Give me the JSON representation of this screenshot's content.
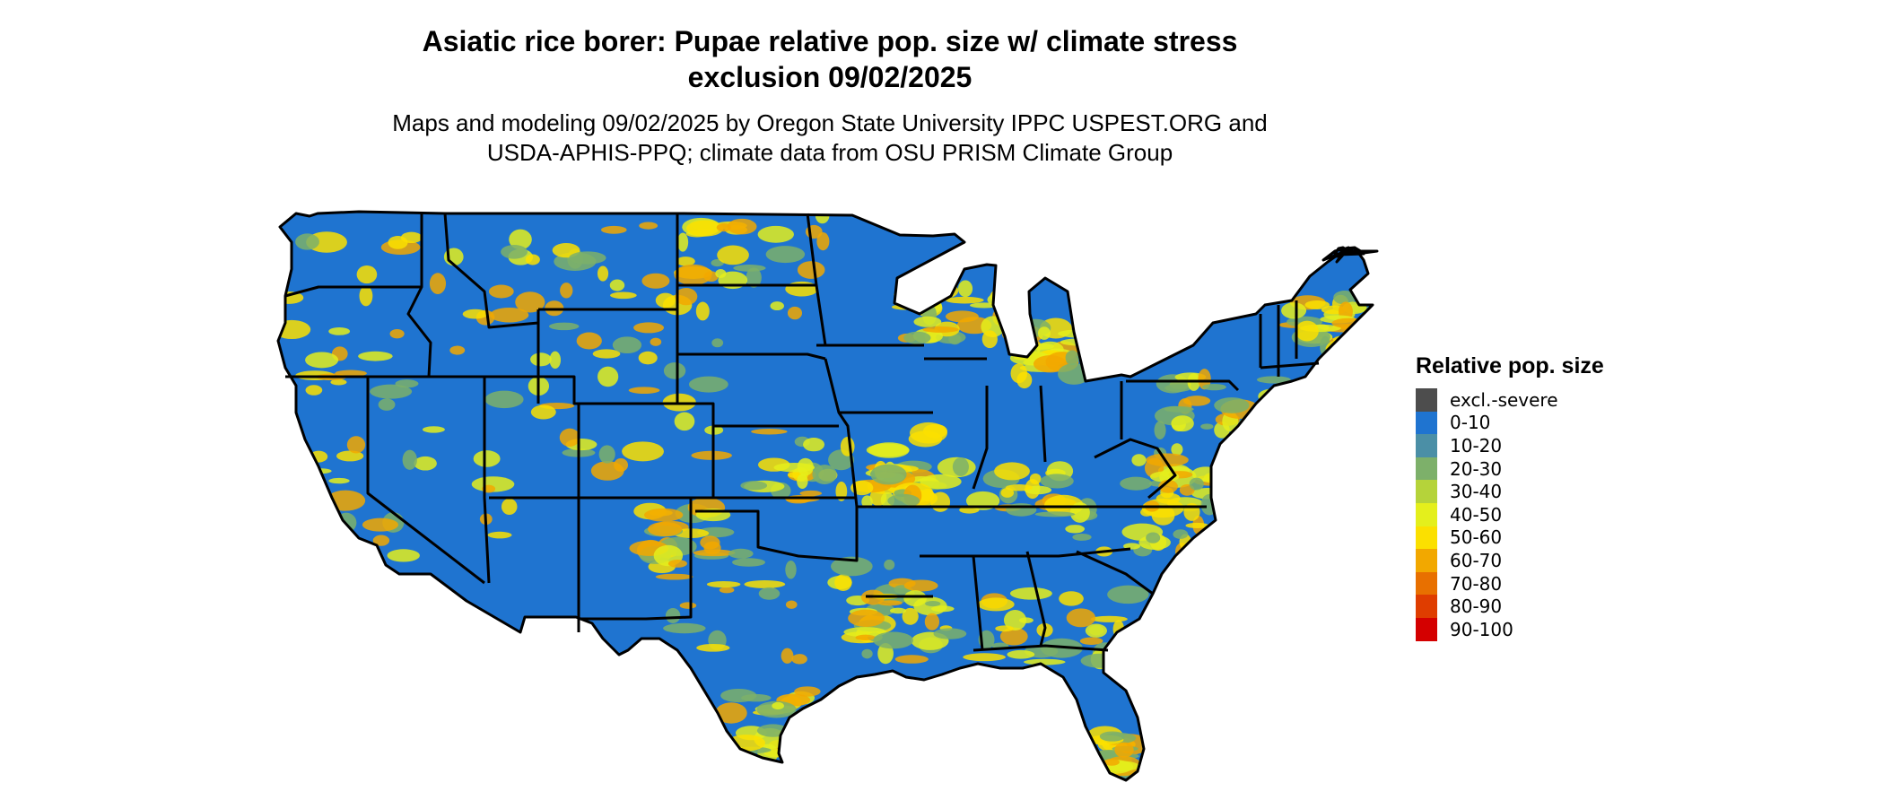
{
  "title_line1": "Asiatic rice borer: Pupae relative pop. size w/ climate stress",
  "title_line2": "exclusion 09/02/2025",
  "subtitle_line1": "Maps and modeling 09/02/2025 by Oregon State University IPPC USPEST.ORG and",
  "subtitle_line2": "USDA-APHIS-PPQ; climate data from OSU PRISM Climate Group",
  "legend": {
    "title": "Relative pop. size",
    "items": [
      {
        "label": "excl.-severe",
        "color": "#4d4d4d"
      },
      {
        "label": "0-10",
        "color": "#1f74d0"
      },
      {
        "label": "10-20",
        "color": "#4b8fa6"
      },
      {
        "label": "20-30",
        "color": "#7db06a"
      },
      {
        "label": "30-40",
        "color": "#b5d33a"
      },
      {
        "label": "40-50",
        "color": "#e4ef1c"
      },
      {
        "label": "50-60",
        "color": "#fbe000"
      },
      {
        "label": "60-70",
        "color": "#f2a800"
      },
      {
        "label": "70-80",
        "color": "#e87000"
      },
      {
        "label": "80-90",
        "color": "#df3d00"
      },
      {
        "label": "90-100",
        "color": "#d40000"
      }
    ]
  },
  "map": {
    "base_color": "#1f74d0",
    "border_color": "#000000",
    "hotspot_colors": [
      "#fbe000",
      "#f2a800",
      "#7db06a",
      "#e4ef1c"
    ]
  }
}
